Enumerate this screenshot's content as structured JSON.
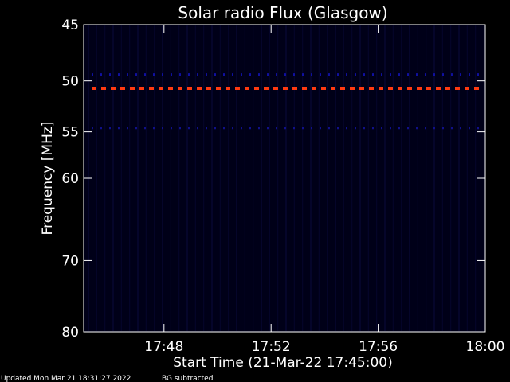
{
  "chart_data": {
    "type": "heatmap",
    "title": "Solar radio Flux (Glasgow)",
    "xlabel": "Start Time (21-Mar-22 17:45:00)",
    "ylabel": "Frequency [MHz]",
    "x_range": [
      "17:45",
      "18:00"
    ],
    "y_range": [
      45,
      80
    ],
    "y_scale": "log",
    "y_inverted": true,
    "x_ticks": [
      "17:48",
      "17:52",
      "17:56",
      "18:00"
    ],
    "y_ticks": [
      45,
      50,
      55,
      60,
      70,
      80
    ],
    "background_color": "#000018",
    "bands": [
      {
        "frequency": 49.4,
        "color": "#1010a0",
        "pattern": "dotted"
      },
      {
        "frequency": 50.7,
        "color": "#ff3a10",
        "pattern": "dashed"
      },
      {
        "frequency": 54.6,
        "color": "#10108a",
        "pattern": "dotted"
      }
    ],
    "notes": [
      "BG subtracted"
    ]
  },
  "footer": {
    "updated": "Updated Mon Mar 21 18:31:27 2022",
    "note": "BG subtracted"
  }
}
